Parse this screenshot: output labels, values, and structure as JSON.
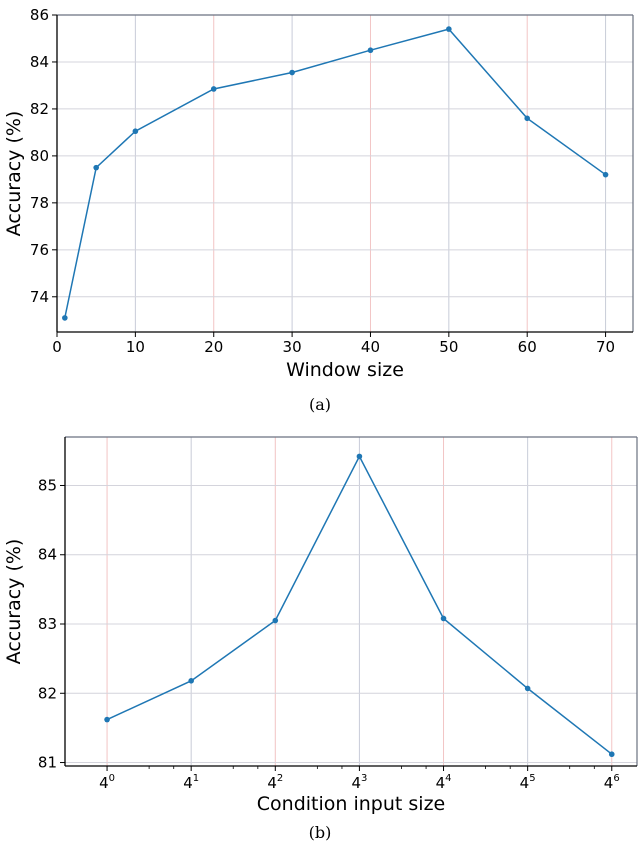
{
  "chart_data": [
    {
      "type": "line",
      "caption": "(a)",
      "xlabel": "Window size",
      "ylabel": "Accuracy (%)",
      "xlim": [
        0,
        73.5
      ],
      "ylim": [
        72.5,
        86
      ],
      "xticks": [
        0,
        10,
        20,
        30,
        40,
        50,
        60,
        70
      ],
      "yticks": [
        74,
        76,
        78,
        80,
        82,
        84,
        86
      ],
      "grid": true,
      "color": "#1f77b4",
      "x": [
        1,
        5,
        10,
        20,
        30,
        40,
        50,
        60,
        70
      ],
      "y": [
        73.1,
        79.5,
        81.05,
        82.85,
        83.55,
        84.5,
        85.4,
        81.6,
        79.2
      ]
    },
    {
      "type": "line",
      "caption": "(b)",
      "xlabel": "Condition input size",
      "ylabel": "Accuracy (%)",
      "xscale": "log4",
      "xlim": [
        -0.5,
        6.3
      ],
      "ylim": [
        80.95,
        85.7
      ],
      "xticks": [
        {
          "base": "4",
          "exp": "0"
        },
        {
          "base": "4",
          "exp": "1"
        },
        {
          "base": "4",
          "exp": "2"
        },
        {
          "base": "4",
          "exp": "3"
        },
        {
          "base": "4",
          "exp": "4"
        },
        {
          "base": "4",
          "exp": "5"
        },
        {
          "base": "4",
          "exp": "6"
        }
      ],
      "yticks": [
        81,
        82,
        83,
        84,
        85
      ],
      "grid": true,
      "color": "#1f77b4",
      "x": [
        1,
        4,
        16,
        64,
        256,
        1024,
        4096
      ],
      "y": [
        81.62,
        82.18,
        83.05,
        85.42,
        83.08,
        82.07,
        81.12
      ]
    }
  ]
}
